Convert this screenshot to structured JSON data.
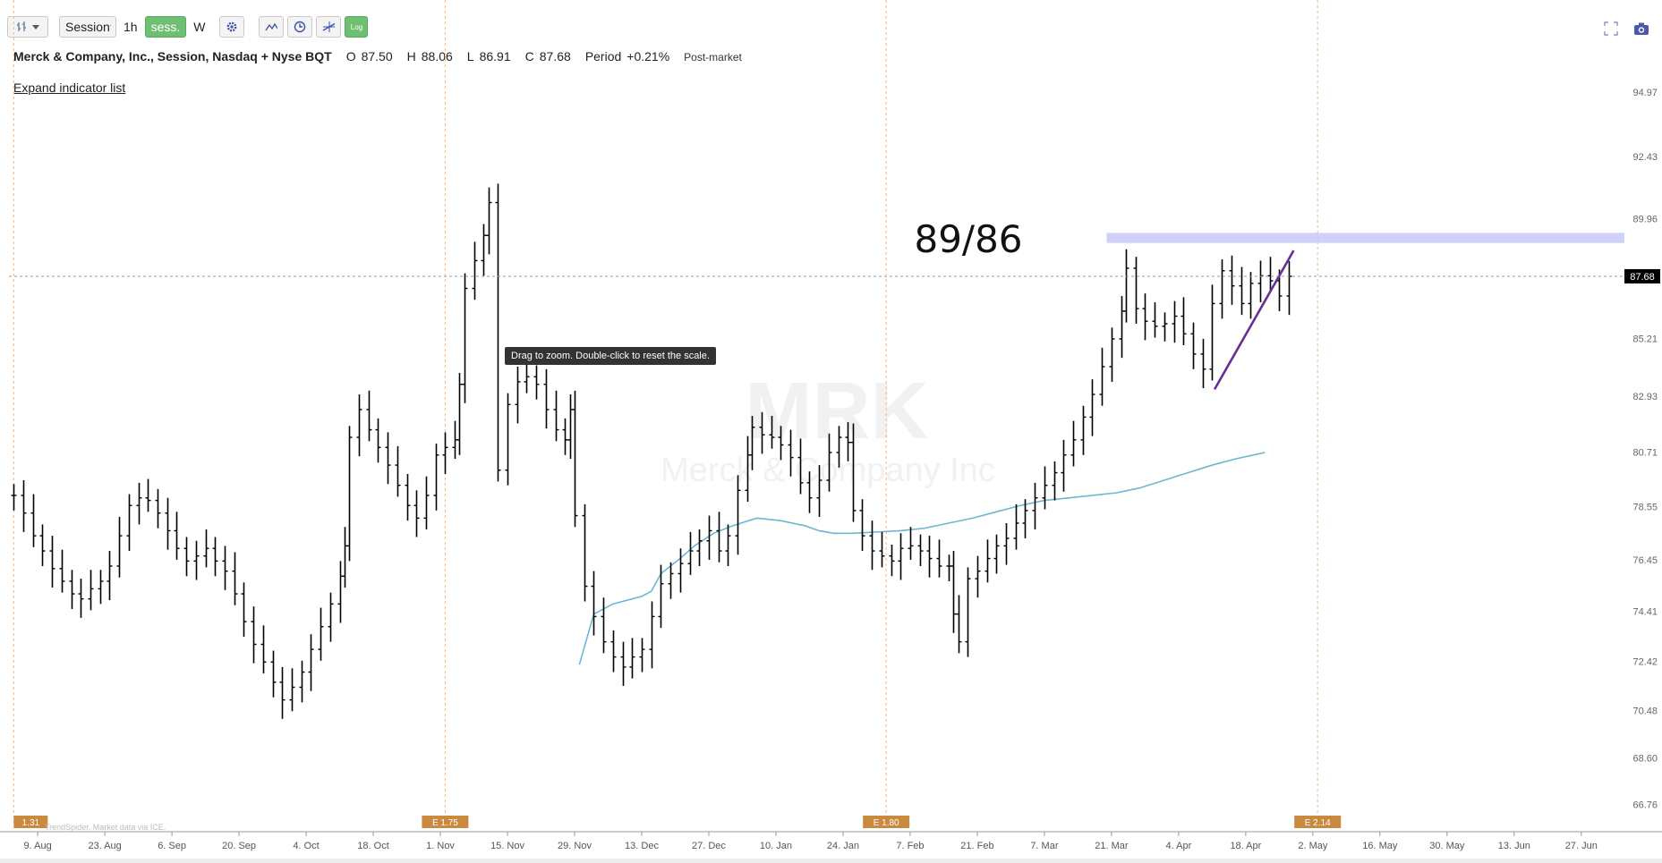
{
  "toolbar": {
    "bar_type_icon": "bar-chart-icon",
    "session_label": "Session",
    "interval_label": "1h",
    "sess_label": "sess.",
    "week_label": "W",
    "settings_icon": "gear-icon",
    "indicator_icon": "indicator-icon",
    "clock_icon": "clock-icon",
    "drawing_icon": "drawing-tool-icon",
    "log_label": "Log"
  },
  "top_right": {
    "fullscreen_icon": "fullscreen-icon",
    "camera_icon": "camera-icon"
  },
  "header": {
    "symbol_desc": "Merck & Company, Inc., Session, Nasdaq + Nyse BQT",
    "open_label": "O",
    "open_value": "87.50",
    "high_label": "H",
    "high_value": "88.06",
    "low_label": "L",
    "low_value": "86.91",
    "close_label": "C",
    "close_value": "87.68",
    "period_label": "Period",
    "period_value": "+0.21%",
    "market_state": "Post-market"
  },
  "expand_indicator_label": "Expand indicator list",
  "tooltip_text": "Drag to zoom. Double-click to reset the scale.",
  "watermark": {
    "ticker": "MRK",
    "company": "Merck & Company Inc"
  },
  "attribution": "TrendSpider. Market data via ICE.",
  "annotation_text": "89/86",
  "colors": {
    "ma_line": "#6db6d2",
    "trend_line": "#6a2d91",
    "resistance_zone": "#c7c9f5",
    "earnings_label_bg": "#c98a40",
    "earnings_line": "#f0b98a",
    "bar_color": "#000000"
  },
  "chart_data": {
    "type": "ohlc",
    "y_axis": {
      "min": 65.5,
      "max": 96.5,
      "ticks": [
        "94.97",
        "92.43",
        "89.96",
        "87.68",
        "85.21",
        "82.93",
        "80.71",
        "78.55",
        "76.45",
        "74.41",
        "72.42",
        "70.48",
        "68.60",
        "66.76"
      ],
      "tick_values": [
        94.97,
        92.43,
        89.96,
        87.68,
        85.21,
        82.93,
        80.71,
        78.55,
        76.45,
        74.41,
        72.42,
        70.48,
        68.6,
        66.76
      ],
      "last_price_label": "87.68",
      "last_price": 87.68
    },
    "x_axis": {
      "labels": [
        "9. Aug",
        "23. Aug",
        "6. Sep",
        "20. Sep",
        "4. Oct",
        "18. Oct",
        "1. Nov",
        "15. Nov",
        "29. Nov",
        "13. Dec",
        "27. Dec",
        "10. Jan",
        "24. Jan",
        "7. Feb",
        "21. Feb",
        "7. Mar",
        "21. Mar",
        "4. Apr",
        "18. Apr",
        "2. May",
        "16. May",
        "30. May",
        "13. Jun",
        "27. Jun"
      ],
      "label_days": [
        0,
        14,
        28,
        42,
        56,
        70,
        84,
        98,
        112,
        126,
        140,
        154,
        168,
        182,
        196,
        210,
        224,
        238,
        252,
        266,
        280,
        294,
        308,
        322
      ],
      "day_origin_label": "9. Aug",
      "domain_days": [
        -6,
        331
      ]
    },
    "earnings": [
      {
        "label": "1.31",
        "day": -5
      },
      {
        "label": "E 1.75",
        "day": 85
      },
      {
        "label": "E 1.80",
        "day": 177
      },
      {
        "label": "E 2.14",
        "day": 267
      }
    ],
    "closes": [
      [
        -5,
        79.0
      ],
      [
        -3,
        78.3
      ],
      [
        -1,
        77.4
      ],
      [
        1,
        76.8
      ],
      [
        3,
        76.1
      ],
      [
        5,
        75.6
      ],
      [
        7,
        75.1
      ],
      [
        9,
        74.9
      ],
      [
        11,
        75.3
      ],
      [
        13,
        75.6
      ],
      [
        15,
        76.2
      ],
      [
        17,
        77.4
      ],
      [
        19,
        78.6
      ],
      [
        21,
        78.9
      ],
      [
        23,
        78.8
      ],
      [
        25,
        78.3
      ],
      [
        27,
        77.6
      ],
      [
        29,
        76.9
      ],
      [
        31,
        76.4
      ],
      [
        33,
        76.6
      ],
      [
        35,
        76.9
      ],
      [
        37,
        76.4
      ],
      [
        39,
        76.0
      ],
      [
        41,
        75.1
      ],
      [
        43,
        74.0
      ],
      [
        45,
        73.1
      ],
      [
        47,
        72.4
      ],
      [
        49,
        71.6
      ],
      [
        51,
        70.9
      ],
      [
        53,
        71.4
      ],
      [
        55,
        72.0
      ],
      [
        57,
        72.9
      ],
      [
        59,
        73.8
      ],
      [
        61,
        74.7
      ],
      [
        63,
        75.8
      ],
      [
        64,
        77.0
      ],
      [
        65,
        81.3
      ],
      [
        67,
        82.4
      ],
      [
        69,
        81.6
      ],
      [
        71,
        80.9
      ],
      [
        73,
        80.2
      ],
      [
        75,
        79.4
      ],
      [
        77,
        78.6
      ],
      [
        79,
        78.1
      ],
      [
        81,
        79.0
      ],
      [
        83,
        80.6
      ],
      [
        85,
        80.9
      ],
      [
        87,
        81.2
      ],
      [
        88,
        83.4
      ],
      [
        89,
        87.2
      ],
      [
        91,
        88.3
      ],
      [
        93,
        89.3
      ],
      [
        94,
        90.6
      ],
      [
        96,
        80.0
      ],
      [
        98,
        82.6
      ],
      [
        100,
        83.5
      ],
      [
        102,
        83.7
      ],
      [
        104,
        83.4
      ],
      [
        106,
        82.4
      ],
      [
        108,
        81.6
      ],
      [
        110,
        81.2
      ],
      [
        111,
        82.4
      ],
      [
        112,
        78.2
      ],
      [
        114,
        75.4
      ],
      [
        116,
        74.2
      ],
      [
        118,
        73.2
      ],
      [
        120,
        72.6
      ],
      [
        122,
        72.2
      ],
      [
        124,
        72.6
      ],
      [
        126,
        72.9
      ],
      [
        128,
        74.2
      ],
      [
        130,
        75.5
      ],
      [
        132,
        75.9
      ],
      [
        134,
        76.3
      ],
      [
        136,
        76.8
      ],
      [
        138,
        77.2
      ],
      [
        140,
        77.6
      ],
      [
        142,
        76.8
      ],
      [
        144,
        77.4
      ],
      [
        146,
        79.2
      ],
      [
        148,
        80.6
      ],
      [
        149,
        81.7
      ],
      [
        151,
        81.4
      ],
      [
        153,
        81.3
      ],
      [
        155,
        81.0
      ],
      [
        157,
        80.5
      ],
      [
        159,
        79.5
      ],
      [
        161,
        78.9
      ],
      [
        163,
        79.6
      ],
      [
        165,
        80.7
      ],
      [
        167,
        81.3
      ],
      [
        169,
        81.1
      ],
      [
        170,
        78.4
      ],
      [
        172,
        77.4
      ],
      [
        174,
        76.8
      ],
      [
        176,
        76.6
      ],
      [
        178,
        76.4
      ],
      [
        180,
        76.9
      ],
      [
        182,
        77.0
      ],
      [
        184,
        76.8
      ],
      [
        186,
        76.5
      ],
      [
        188,
        76.2
      ],
      [
        190,
        76.2
      ],
      [
        191,
        74.3
      ],
      [
        192,
        73.2
      ],
      [
        194,
        75.7
      ],
      [
        196,
        76.0
      ],
      [
        198,
        76.5
      ],
      [
        200,
        77.0
      ],
      [
        202,
        77.3
      ],
      [
        204,
        77.9
      ],
      [
        206,
        78.4
      ],
      [
        208,
        78.9
      ],
      [
        210,
        79.4
      ],
      [
        212,
        79.9
      ],
      [
        214,
        80.6
      ],
      [
        216,
        81.2
      ],
      [
        218,
        82.1
      ],
      [
        220,
        83.0
      ],
      [
        222,
        84.1
      ],
      [
        224,
        85.2
      ],
      [
        226,
        86.3
      ],
      [
        227,
        88.0
      ],
      [
        229,
        86.4
      ],
      [
        231,
        85.9
      ],
      [
        233,
        85.7
      ],
      [
        235,
        85.8
      ],
      [
        237,
        86.1
      ],
      [
        239,
        85.4
      ],
      [
        241,
        84.6
      ],
      [
        243,
        84.0
      ],
      [
        245,
        86.6
      ],
      [
        247,
        87.9
      ],
      [
        249,
        87.3
      ],
      [
        251,
        86.6
      ],
      [
        253,
        87.4
      ],
      [
        255,
        87.7
      ],
      [
        257,
        87.5
      ],
      [
        259,
        86.9
      ],
      [
        261,
        87.68
      ]
    ],
    "ma_series": {
      "values": [
        [
          113,
          72.3
        ],
        [
          116,
          74.3
        ],
        [
          120,
          74.7
        ],
        [
          126,
          75.0
        ],
        [
          128,
          75.2
        ],
        [
          130,
          75.9
        ],
        [
          134,
          76.5
        ],
        [
          137,
          77.0
        ],
        [
          141,
          77.5
        ],
        [
          145,
          77.8
        ],
        [
          150,
          78.1
        ],
        [
          155,
          78.0
        ],
        [
          160,
          77.8
        ],
        [
          163,
          77.6
        ],
        [
          166,
          77.5
        ],
        [
          170,
          77.5
        ],
        [
          175,
          77.55
        ],
        [
          180,
          77.6
        ],
        [
          185,
          77.7
        ],
        [
          190,
          77.9
        ],
        [
          195,
          78.1
        ],
        [
          200,
          78.35
        ],
        [
          205,
          78.6
        ],
        [
          210,
          78.8
        ],
        [
          215,
          78.9
        ],
        [
          220,
          79.0
        ],
        [
          225,
          79.1
        ],
        [
          230,
          79.3
        ],
        [
          235,
          79.6
        ],
        [
          240,
          79.9
        ],
        [
          245,
          80.2
        ],
        [
          250,
          80.45
        ],
        [
          256,
          80.7
        ]
      ]
    },
    "resistance_zone": {
      "from_day": 223,
      "to_day": 331,
      "y_low": 89.0,
      "y_high": 89.4
    },
    "trend_line": {
      "from": [
        245.5,
        83.2
      ],
      "to": [
        262,
        88.7
      ]
    }
  }
}
